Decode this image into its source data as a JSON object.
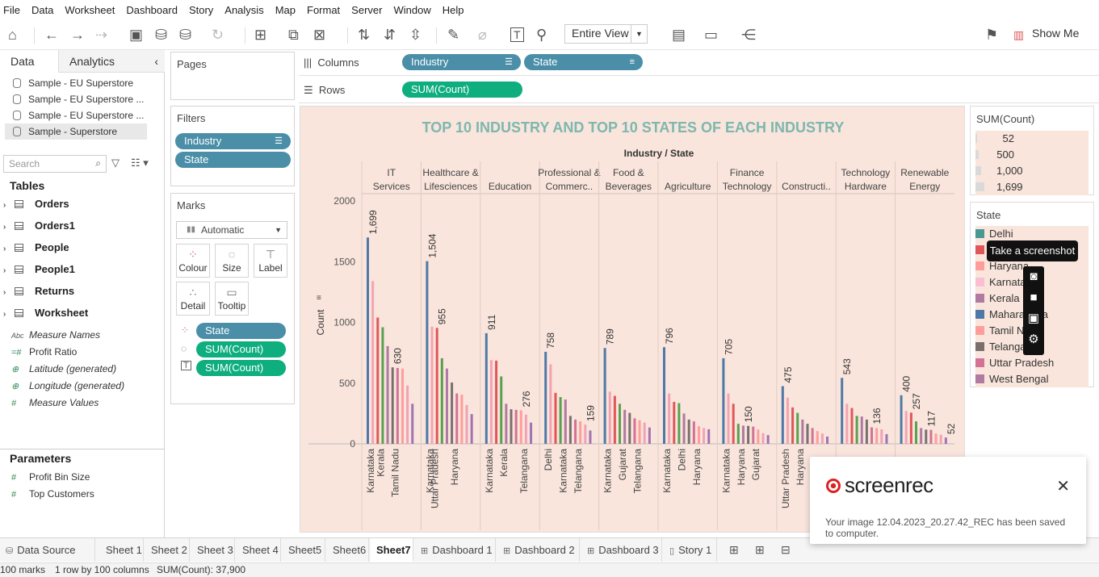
{
  "menu": [
    "File",
    "Data",
    "Worksheet",
    "Dashboard",
    "Story",
    "Analysis",
    "Map",
    "Format",
    "Server",
    "Window",
    "Help"
  ],
  "toolbar": {
    "view_select": "Entire View",
    "show_me": "Show Me"
  },
  "left_pane": {
    "tabs": {
      "data": "Data",
      "analytics": "Analytics"
    },
    "sources": [
      "Sample - EU Superstore",
      "Sample - EU Superstore ...",
      "Sample - EU Superstore ...",
      "Sample - Superstore"
    ],
    "search_placeholder": "Search",
    "tables_title": "Tables",
    "tables": [
      "Orders",
      "Orders1",
      "People",
      "People1",
      "Returns",
      "Worksheet"
    ],
    "fields": [
      {
        "icon": "Abc",
        "label": "Measure Names"
      },
      {
        "icon": "=#",
        "label": "Profit Ratio"
      },
      {
        "icon": "globe",
        "label": "Latitude (generated)"
      },
      {
        "icon": "globe",
        "label": "Longitude (generated)"
      },
      {
        "icon": "#",
        "label": "Measure Values"
      }
    ],
    "parameters_title": "Parameters",
    "parameters": [
      "Profit Bin Size",
      "Top Customers"
    ]
  },
  "pages_title": "Pages",
  "filters": {
    "title": "Filters",
    "pills": [
      "Industry",
      "State"
    ]
  },
  "marks": {
    "title": "Marks",
    "type": "Automatic",
    "buttons": [
      "Colour",
      "Size",
      "Label",
      "Detail",
      "Tooltip"
    ],
    "pills": [
      {
        "label": "State",
        "kind": "blue"
      },
      {
        "label": "SUM(Count)",
        "kind": "green"
      },
      {
        "label": "SUM(Count)",
        "kind": "green"
      }
    ]
  },
  "columns": {
    "label": "Columns",
    "pills": [
      "Industry",
      "State"
    ]
  },
  "rows": {
    "label": "Rows",
    "pills": [
      "SUM(Count)"
    ]
  },
  "chart_data": {
    "type": "bar",
    "title": "TOP 10 INDUSTRY AND TOP 10 STATES OF EACH INDUSTRY",
    "header": "Industry / State",
    "ylabel": "Count",
    "ylim": [
      0,
      2000
    ],
    "yticks": [
      0,
      500,
      1000,
      1500,
      2000
    ],
    "groups": [
      {
        "name": "IT Services",
        "bars": [
          1699,
          1340,
          1040,
          960,
          805,
          630,
          625,
          620,
          480,
          330
        ],
        "labels": {
          "0": "1,699",
          "5": "630"
        },
        "xlabels": {
          "0": "Karnataka",
          "2": "Kerala",
          "5": "Tamil Nadu"
        }
      },
      {
        "name": "Healthcare & Lifesciences",
        "bars": [
          1504,
          965,
          955,
          705,
          620,
          505,
          415,
          405,
          320,
          245
        ],
        "labels": {
          "0": "1,504",
          "2": "955"
        },
        "xlabels": {
          "0": "Karnataka",
          "1": "Uttar Pradesh",
          "5": "Haryana"
        }
      },
      {
        "name": "Education",
        "bars": [
          911,
          690,
          685,
          555,
          330,
          285,
          280,
          276,
          240,
          175
        ],
        "labels": {
          "0": "911",
          "7": "276"
        },
        "xlabels": {
          "0": "Karnataka",
          "3": "Kerala",
          "7": "Telangana"
        }
      },
      {
        "name": "Professional & Commerc..",
        "bars": [
          758,
          655,
          420,
          385,
          365,
          230,
          200,
          185,
          159,
          110
        ],
        "labels": {
          "0": "758",
          "8": "159"
        },
        "xlabels": {
          "0": "Delhi",
          "3": "Karnataka",
          "6": "Telangana"
        }
      },
      {
        "name": "Food & Beverages",
        "bars": [
          789,
          430,
          395,
          330,
          280,
          255,
          210,
          195,
          175,
          135
        ],
        "labels": {
          "0": "789"
        },
        "xlabels": {
          "0": "Karnataka",
          "3": "Gujarat",
          "6": "Telangana"
        }
      },
      {
        "name": "Agriculture",
        "bars": [
          796,
          415,
          345,
          335,
          250,
          200,
          185,
          145,
          130,
          120
        ],
        "labels": {
          "0": "796"
        },
        "xlabels": {
          "0": "Karnataka",
          "3": "Delhi",
          "6": "Haryana"
        }
      },
      {
        "name": "Finance Technology",
        "bars": [
          705,
          415,
          330,
          165,
          150,
          148,
          142,
          118,
          88,
          72
        ],
        "labels": {
          "0": "705",
          "4": "150"
        },
        "xlabels": {
          "0": "Karnataka",
          "3": "Haryana",
          "6": "Gujarat"
        }
      },
      {
        "name": "Constructi..",
        "bars": [
          475,
          380,
          300,
          255,
          200,
          165,
          130,
          105,
          85,
          60
        ],
        "labels": {
          "0": "475"
        },
        "xlabels": {
          "0": "Uttar Pradesh",
          "3": "Haryana"
        }
      },
      {
        "name": "Technology Hardware",
        "bars": [
          543,
          330,
          295,
          230,
          225,
          200,
          136,
          130,
          120,
          80
        ],
        "labels": {
          "0": "543",
          "6": "136"
        },
        "xlabels": {}
      },
      {
        "name": "Renewable Energy",
        "bars": [
          400,
          270,
          257,
          185,
          130,
          117,
          115,
          85,
          75,
          52
        ],
        "labels": {
          "0": "400",
          "2": "257",
          "5": "117",
          "9": "52"
        },
        "xlabels": {}
      }
    ],
    "bar_colors": [
      "#4e79a7",
      "#f4a3b3",
      "#e15759",
      "#59a14f",
      "#b07aa1",
      "#79706e",
      "#d37295",
      "#ff9d9a",
      "#f1a2b6",
      "#a074b2"
    ]
  },
  "size_legend": {
    "title": "SUM(Count)",
    "items": [
      "52",
      "500",
      "1,000",
      "1,699"
    ]
  },
  "state_legend": {
    "title": "State",
    "items": [
      {
        "label": "Delhi",
        "color": "#499894"
      },
      {
        "label": "Gujarat",
        "color": "#e15759"
      },
      {
        "label": "Haryana",
        "color": "#ff9d9a"
      },
      {
        "label": "Karnataka",
        "color": "#fabfd2"
      },
      {
        "label": "Kerala",
        "color": "#b07aa1"
      },
      {
        "label": "Maharashtra",
        "color": "#4e79a7"
      },
      {
        "label": "Tamil Nadu",
        "color": "#ff9d9a"
      },
      {
        "label": "Telangana",
        "color": "#79706e"
      },
      {
        "label": "Uttar Pradesh",
        "color": "#d37295"
      },
      {
        "label": "West Bengal",
        "color": "#b07aa1"
      }
    ]
  },
  "tooltip": "Take a screenshot",
  "tabs": [
    {
      "label": "Data Source",
      "icon": "db-icon"
    },
    {
      "label": "Sheet 1"
    },
    {
      "label": "Sheet 2"
    },
    {
      "label": "Sheet 3"
    },
    {
      "label": "Sheet 4"
    },
    {
      "label": "Sheet5"
    },
    {
      "label": "Sheet6"
    },
    {
      "label": "Sheet7",
      "active": true
    },
    {
      "label": "Dashboard 1",
      "icon": "dash-icon"
    },
    {
      "label": "Dashboard 2",
      "icon": "dash-icon"
    },
    {
      "label": "Dashboard 3",
      "icon": "dash-icon"
    },
    {
      "label": "Story 1",
      "icon": "story-icon"
    }
  ],
  "status": {
    "marks": "100 marks",
    "rows": "1 row by 100 columns",
    "sum": "SUM(Count): 37,900"
  },
  "notice": {
    "brand": "screenrec",
    "message": "Your image 12.04.2023_20.27.42_REC has been saved to computer."
  }
}
